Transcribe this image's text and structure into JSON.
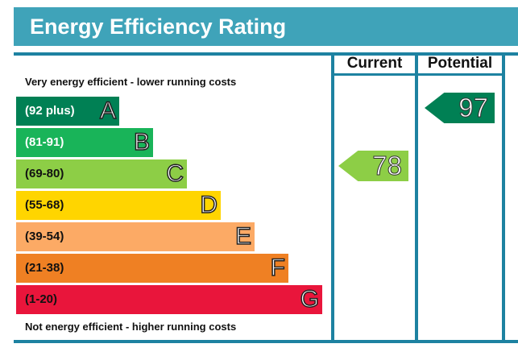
{
  "title": "Energy Efficiency Rating",
  "columns": {
    "current": "Current",
    "potential": "Potential"
  },
  "notes": {
    "top": "Very energy efficient - lower running costs",
    "bottom": "Not energy efficient - higher running costs"
  },
  "bands": [
    {
      "range": "(92 plus)",
      "letter": "A",
      "color": "#008054",
      "text_color": "#ffffff"
    },
    {
      "range": "(81-91)",
      "letter": "B",
      "color": "#19b459",
      "text_color": "#ffffff"
    },
    {
      "range": "(69-80)",
      "letter": "C",
      "color": "#8dce46",
      "text_color": "#111111"
    },
    {
      "range": "(55-68)",
      "letter": "D",
      "color": "#ffd500",
      "text_color": "#111111"
    },
    {
      "range": "(39-54)",
      "letter": "E",
      "color": "#fcaa65",
      "text_color": "#111111"
    },
    {
      "range": "(21-38)",
      "letter": "F",
      "color": "#ef8023",
      "text_color": "#111111"
    },
    {
      "range": "(1-20)",
      "letter": "G",
      "color": "#e9153b",
      "text_color": "#111111"
    }
  ],
  "ratings": {
    "current": {
      "value": "78",
      "band": "C",
      "color": "#8dce46"
    },
    "potential": {
      "value": "97",
      "band": "A",
      "color": "#008054"
    }
  }
}
